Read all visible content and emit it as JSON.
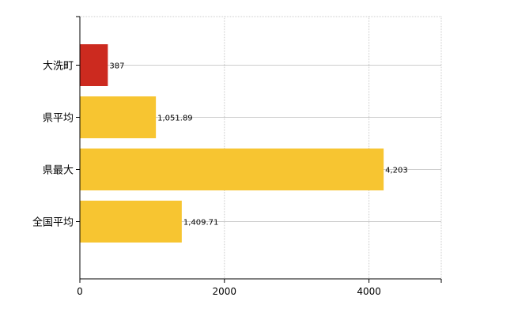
{
  "chart_data": {
    "type": "bar",
    "orientation": "horizontal",
    "categories": [
      "大洗町",
      "県平均",
      "県最大",
      "全国平均"
    ],
    "values": [
      387,
      1051.89,
      4203,
      1409.71
    ],
    "value_labels": [
      "387",
      "1,051.89",
      "4,203",
      "1,409.71"
    ],
    "colors": [
      "#cc2a1f",
      "#f7c531",
      "#f7c531",
      "#f7c531"
    ],
    "xlim": [
      0,
      5000
    ],
    "xticks": [
      0,
      2000,
      4000
    ],
    "xtick_labels": [
      "0",
      "2000",
      "4000"
    ],
    "grid": true,
    "legend": "none"
  }
}
